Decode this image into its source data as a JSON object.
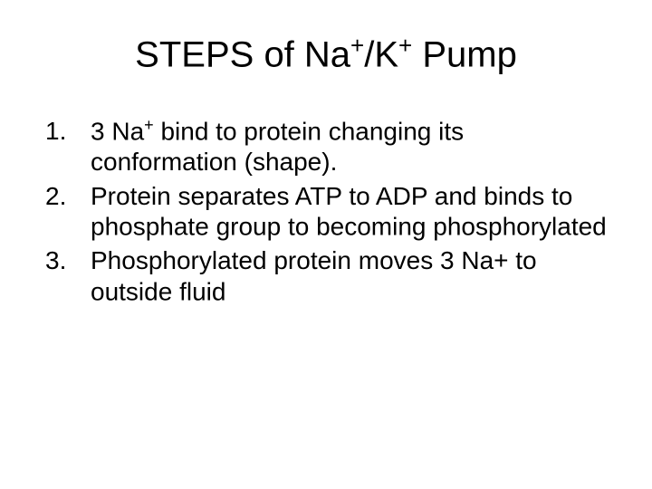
{
  "title": {
    "prefix": "STEPS of Na",
    "sup1": "+",
    "mid": "/K",
    "sup2": "+",
    "suffix": " Pump"
  },
  "items": [
    {
      "pre": "3 Na",
      "sup": "+",
      "post": " bind to protein changing its conformation (shape)."
    },
    {
      "pre": "Protein separates ATP to ADP and binds to phosphate group to becoming phosphorylated",
      "sup": "",
      "post": ""
    },
    {
      "pre": " Phosphorylated protein moves 3 Na+ to outside fluid",
      "sup": "",
      "post": ""
    }
  ]
}
